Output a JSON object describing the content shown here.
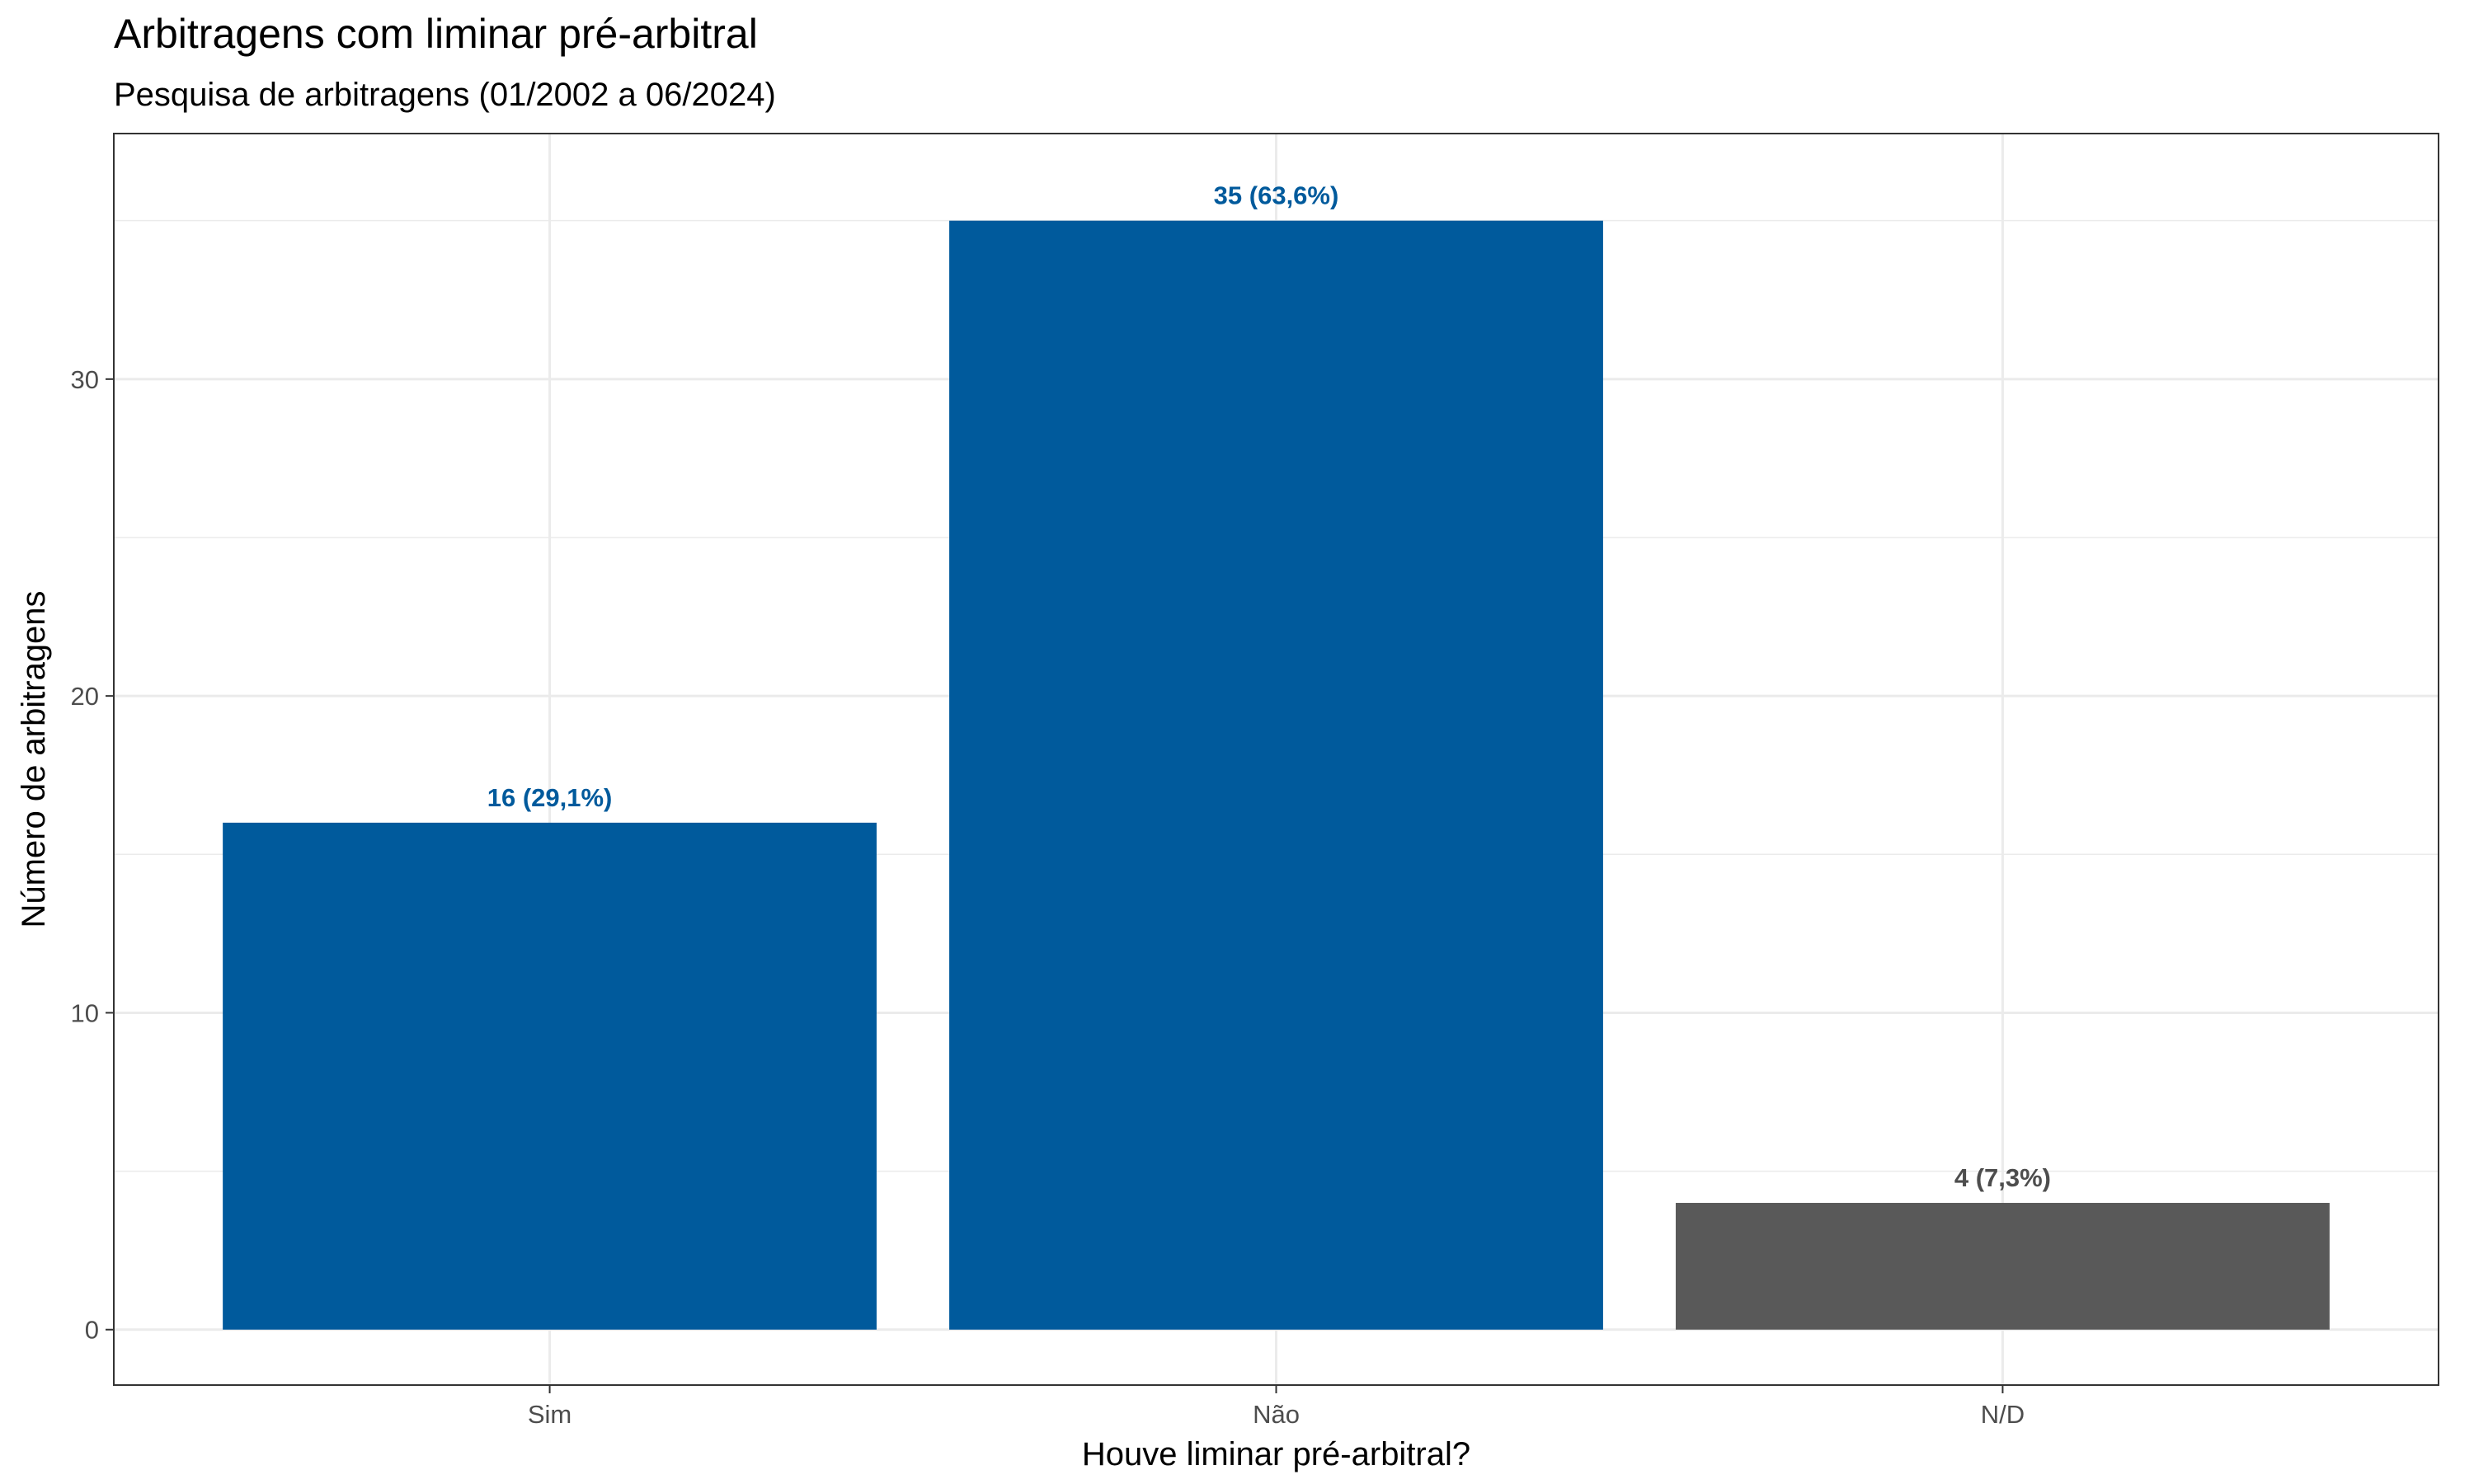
{
  "chart_data": {
    "type": "bar",
    "title": "Arbitragens com liminar pré-arbitral",
    "subtitle": "Pesquisa de arbitragens (01/2002 a 06/2024)",
    "xlabel": "Houve liminar pré-arbitral?",
    "ylabel": "Número de arbitragens",
    "categories": [
      "Sim",
      "Não",
      "N/D"
    ],
    "values": [
      16,
      35,
      4
    ],
    "data_labels": [
      "16 (29,1%)",
      "35 (63,6%)",
      "4 (7,3%)"
    ],
    "bar_colors": [
      "#005a9c",
      "#005a9c",
      "#595959"
    ],
    "label_colors": [
      "#005a9c",
      "#005a9c",
      "#4d4d4d"
    ],
    "yticks": [
      0,
      10,
      20,
      30
    ],
    "ytick_labels": [
      "0",
      "10",
      "20",
      "30"
    ],
    "ylim": [
      -1.75,
      37.75
    ],
    "grid": true,
    "legend": "none"
  }
}
